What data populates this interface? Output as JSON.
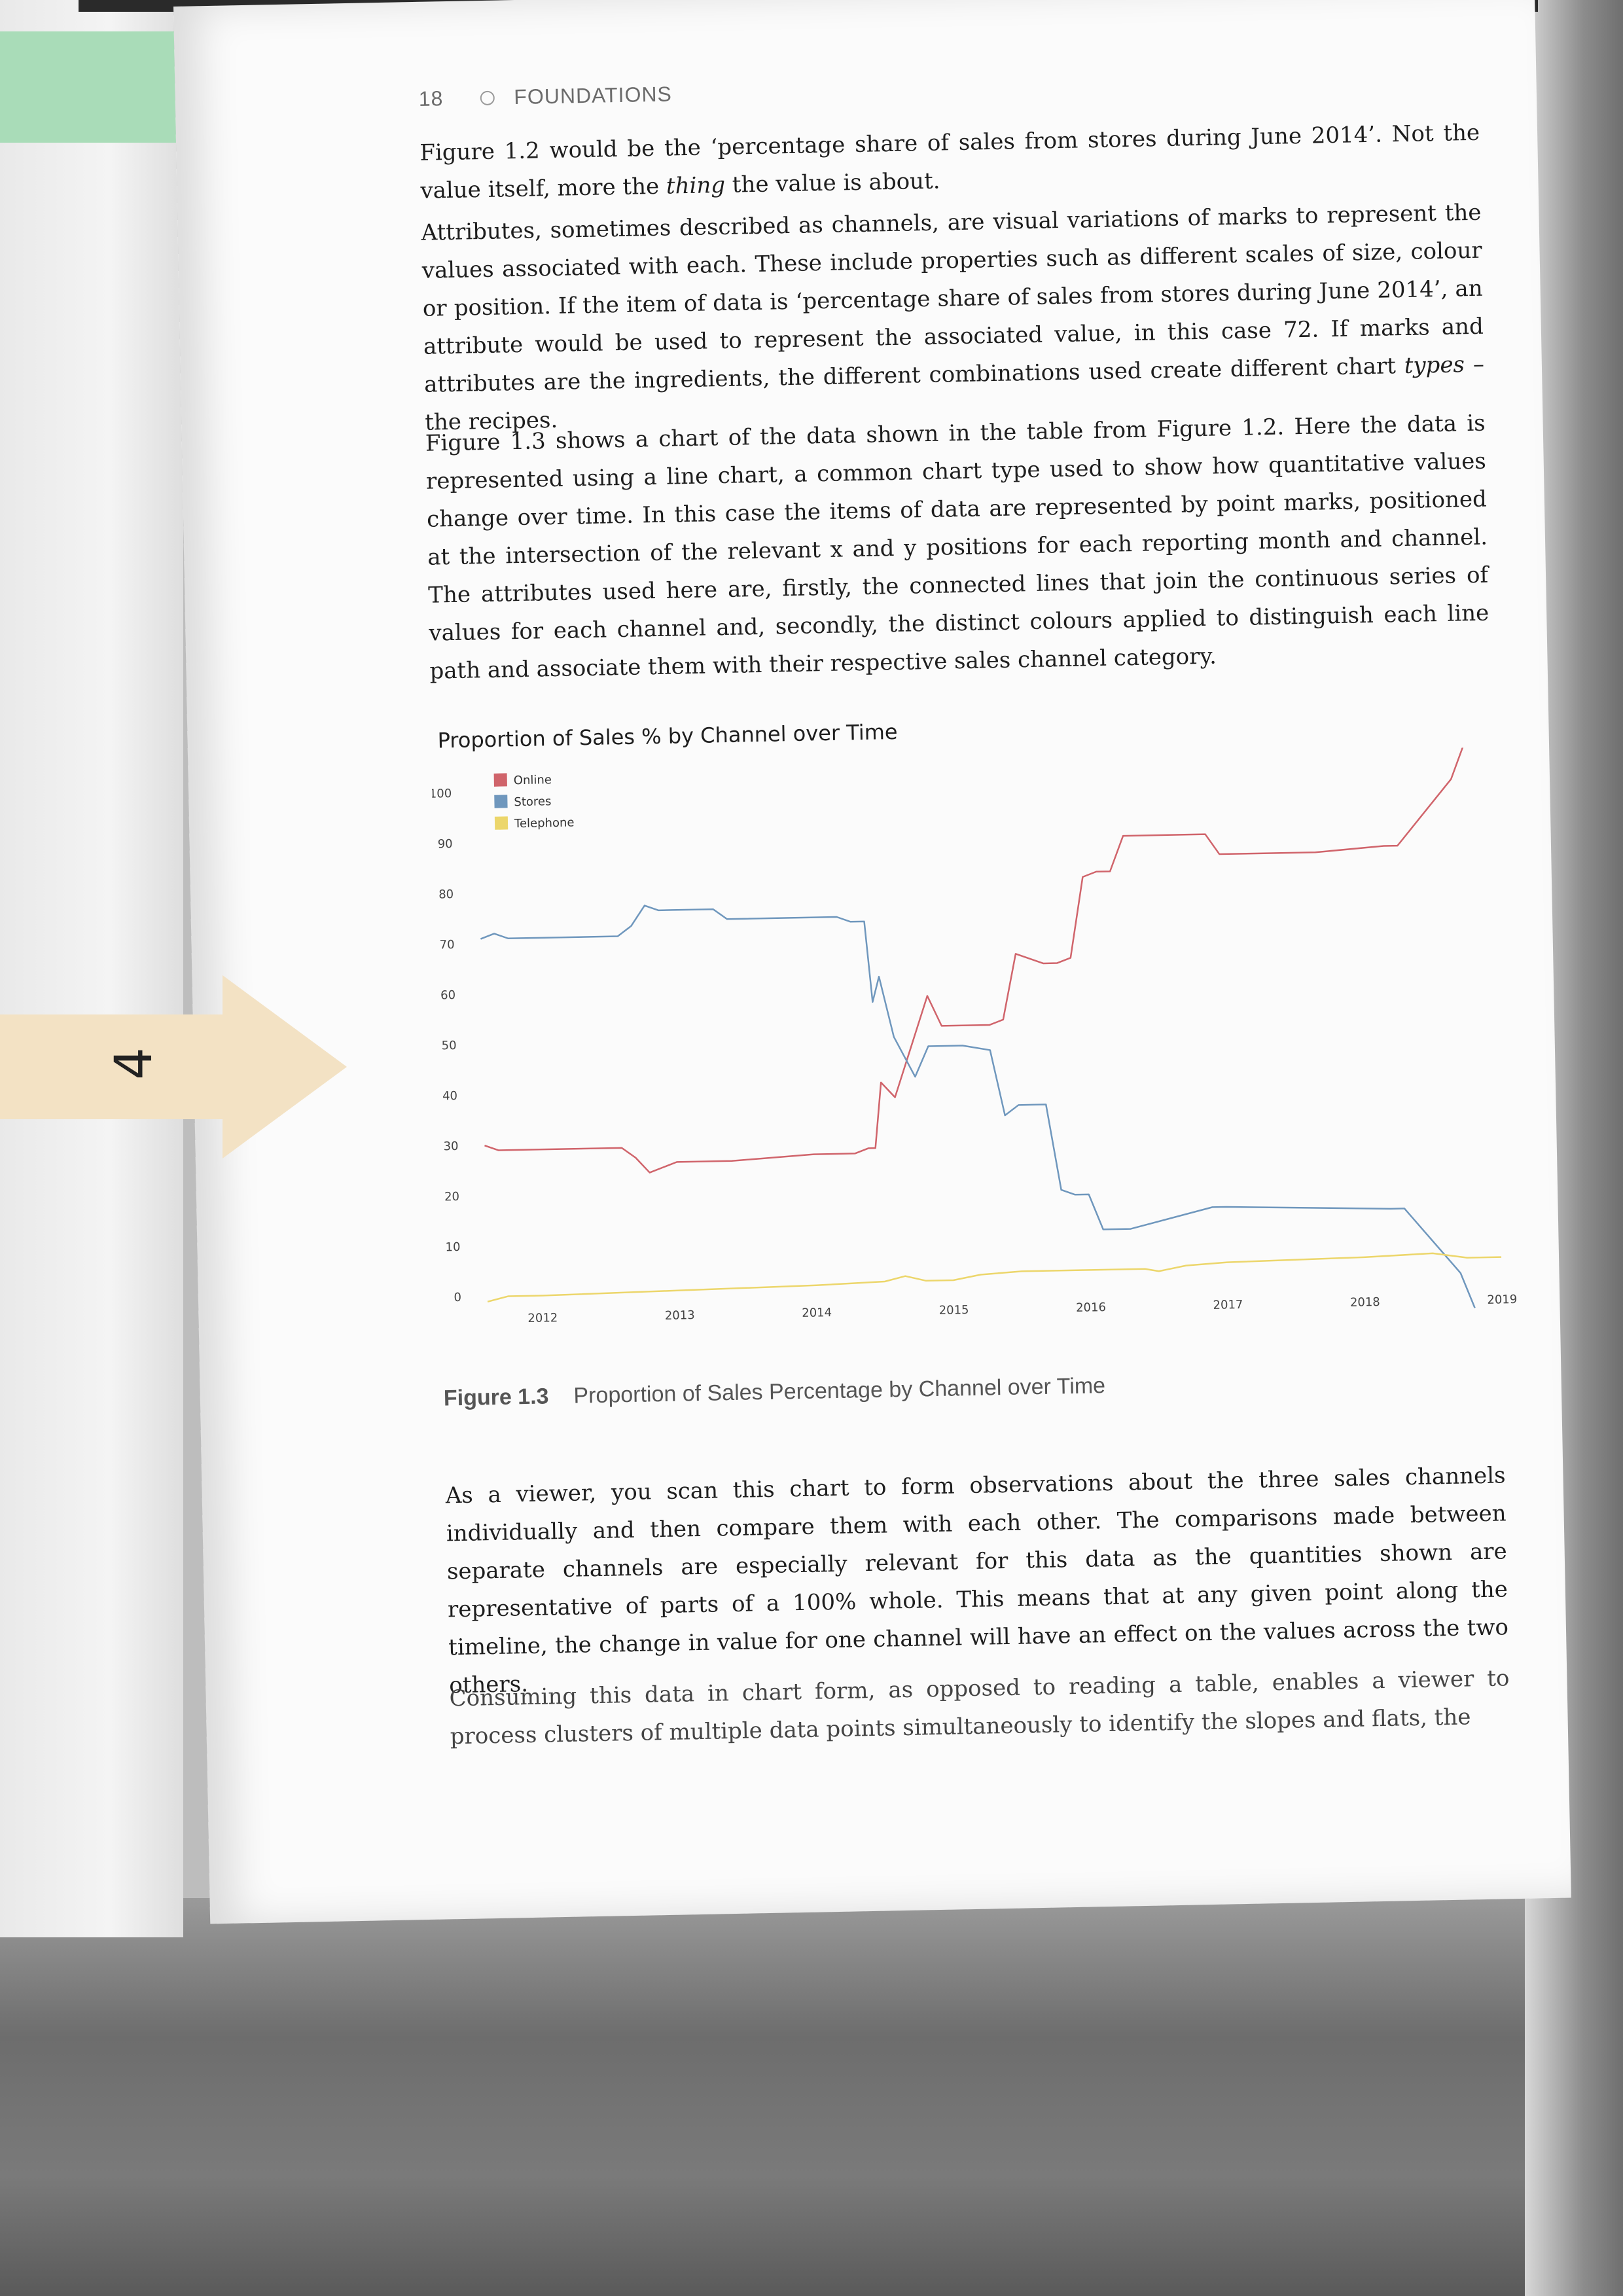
{
  "header": {
    "page_number": "18",
    "section": "FOUNDATIONS"
  },
  "tab_label": "4",
  "paragraphs": [
    "Figure 1.2 would be the ‘percentage share of sales from stores during June 2014’. Not the value itself, more the thing the value is about.",
    "Attributes, sometimes described as channels, are visual variations of marks to represent the values associated with each. These include properties such as different scales of size, colour or position. If the item of data is ‘percentage share of sales from stores during June 2014’, an attribute would be used to represent the associated value, in this case 72. If marks and attributes are the ingredients, the different combinations used create different chart types – the recipes.",
    "Figure 1.3 shows a chart of the data shown in the table from Figure 1.2. Here the data is represented using a line chart, a common chart type used to show how quantitative values change over time. In this case the items of data are represented by point marks, positioned at the intersection of the relevant x and y positions for each reporting month and channel. The attributes used here are, firstly, the connected lines that join the continuous series of values for each channel and, secondly, the distinct colours applied to distinguish each line path and associate them with their respective sales channel category.",
    "As a viewer, you scan this chart to form observations about the three sales channels individually and then compare them with each other. The comparisons made between separate channels are especially relevant for this data as the quantities shown are representative of parts of a 100% whole. This means that at any given point along the timeline, the change in value for one channel will have an effect on the values across the two others.",
    "Consuming this data in chart form, as opposed to reading a table, enables a viewer to process clusters of multiple data points simultaneously to identify the slopes and flats, the"
  ],
  "figure": {
    "caption_label": "Figure 1.3",
    "caption_text": "Proportion of Sales Percentage by Channel over Time"
  },
  "chart_data": {
    "type": "line",
    "title": "Proportion of Sales % by Channel over Time",
    "xlabel": "",
    "ylabel": "",
    "ylim": [
      0,
      100
    ],
    "yticks": [
      0,
      10,
      20,
      30,
      40,
      50,
      60,
      70,
      80,
      90,
      100
    ],
    "xticks": [
      "2012",
      "2013",
      "2014",
      "2015",
      "2016",
      "2017",
      "2018",
      "2019"
    ],
    "xlim": [
      2011.6,
      2019.0
    ],
    "legend_position": "top-left",
    "grid": false,
    "series": [
      {
        "name": "Online",
        "color": "#d0646b",
        "x": [
          2011.6,
          2011.7,
          2012.0,
          2012.5,
          2012.6,
          2012.7,
          2012.8,
          2013.0,
          2013.3,
          2013.4,
          2014.0,
          2014.3,
          2014.4,
          2014.45,
          2014.5,
          2014.6,
          2014.75,
          2014.85,
          2014.95,
          2015.1,
          2015.3,
          2015.4,
          2015.5,
          2015.7,
          2015.8,
          2015.9,
          2016.0,
          2016.1,
          2016.2,
          2016.3,
          2016.9,
          2017.0,
          2017.7,
          2018.2,
          2018.3,
          2018.7,
          2018.8
        ],
        "values": [
          30,
          29,
          29,
          29,
          29,
          27,
          24,
          26,
          26,
          26,
          27,
          27,
          28,
          28,
          41,
          38,
          50,
          58,
          52,
          52,
          52,
          53,
          66,
          64,
          64,
          65,
          81,
          82,
          82,
          89,
          89,
          85,
          85,
          86,
          86,
          99,
          106
        ]
      },
      {
        "name": "Stores",
        "color": "#6f97bd",
        "x": [
          2011.6,
          2011.7,
          2011.8,
          2012.0,
          2012.6,
          2012.7,
          2012.8,
          2012.9,
          2013.0,
          2013.3,
          2013.4,
          2014.2,
          2014.3,
          2014.4,
          2014.45,
          2014.5,
          2014.6,
          2014.75,
          2014.85,
          2014.95,
          2015.1,
          2015.3,
          2015.4,
          2015.5,
          2015.6,
          2015.7,
          2015.8,
          2015.9,
          2016.0,
          2016.1,
          2016.3,
          2016.9,
          2017.0,
          2018.2,
          2018.3,
          2018.7,
          2018.8
        ],
        "values": [
          71,
          72,
          71,
          71,
          71,
          73,
          77,
          76,
          76,
          76,
          74,
          74,
          73,
          73,
          57,
          62,
          50,
          42,
          48,
          48,
          48,
          47,
          34,
          36,
          36,
          36,
          19,
          18,
          18,
          11,
          11,
          15,
          15,
          14,
          14,
          1,
          -6
        ]
      },
      {
        "name": "Telephone",
        "color": "#ecd66b",
        "x": [
          2011.6,
          2011.75,
          2012.0,
          2013.0,
          2014.0,
          2014.5,
          2014.65,
          2014.8,
          2015.0,
          2015.2,
          2015.5,
          2016.0,
          2016.4,
          2016.5,
          2016.7,
          2017.0,
          2018.0,
          2018.5,
          2018.75,
          2018.9,
          2019.0
        ],
        "values": [
          -1,
          0,
          0,
          0.5,
          1,
          1.5,
          2.5,
          1.5,
          1.5,
          2.5,
          3,
          3,
          3,
          2.5,
          3.5,
          4,
          4.5,
          5,
          4,
          4,
          4
        ]
      }
    ]
  }
}
